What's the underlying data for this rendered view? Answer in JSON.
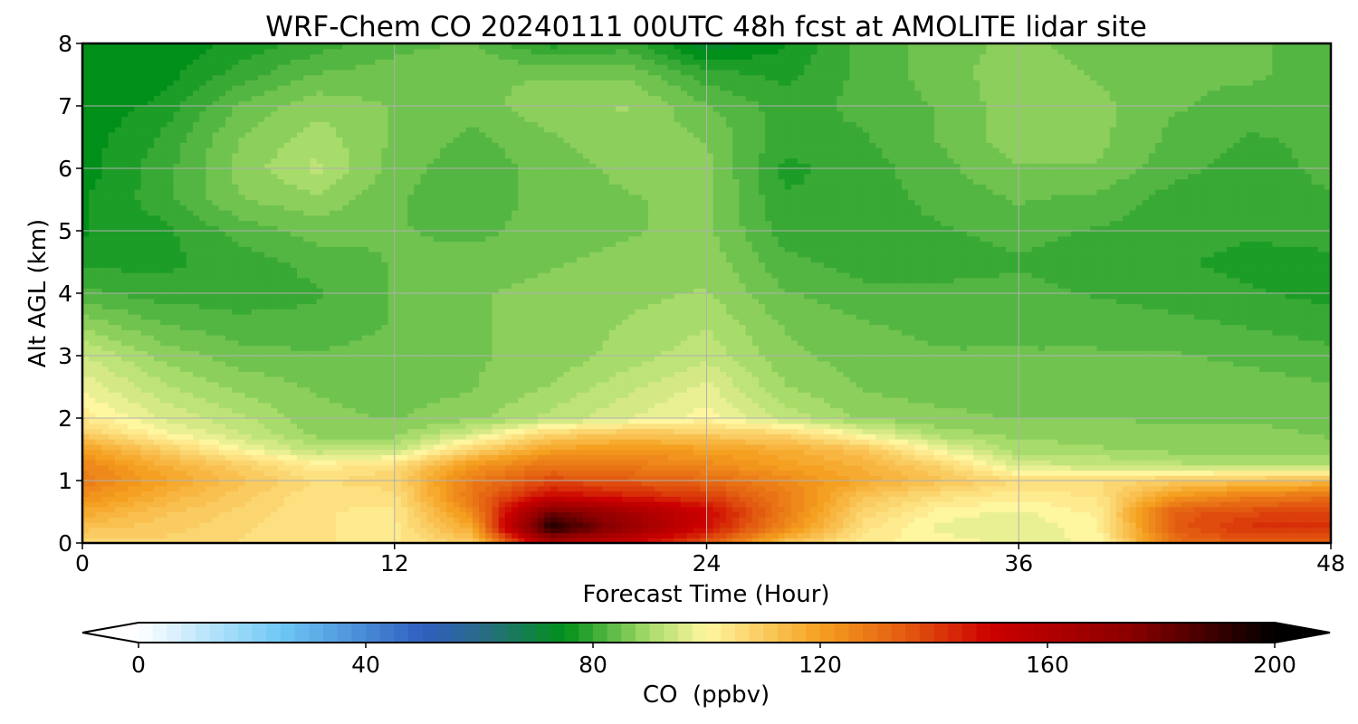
{
  "chart_data": {
    "type": "heatmap",
    "title": "WRF-Chem CO  20240111 00UTC 48h fcst at AMOLITE lidar site",
    "xlabel": "Forecast Time (Hour)",
    "ylabel": "Alt AGL (km)",
    "xlim": [
      0,
      48
    ],
    "ylim": [
      0,
      8
    ],
    "xticks": [
      "0",
      "12",
      "24",
      "36",
      "48"
    ],
    "yticks": [
      "0",
      "1",
      "2",
      "3",
      "4",
      "5",
      "6",
      "7",
      "8"
    ],
    "grid": true,
    "colorbar": {
      "label": "CO  (ppbv)",
      "range": [
        0,
        200
      ],
      "ticks": [
        "0",
        "40",
        "80",
        "120",
        "160",
        "200"
      ],
      "extend": "both",
      "stops": [
        {
          "v": 0,
          "c": "#ffffff"
        },
        {
          "v": 25,
          "c": "#6ec8f5"
        },
        {
          "v": 50,
          "c": "#2f5fc0"
        },
        {
          "v": 60,
          "c": "#2a6a8a"
        },
        {
          "v": 75,
          "c": "#00901a"
        },
        {
          "v": 90,
          "c": "#a8dc6a"
        },
        {
          "v": 100,
          "c": "#fff6a0"
        },
        {
          "v": 120,
          "c": "#f5a020"
        },
        {
          "v": 135,
          "c": "#e35b10"
        },
        {
          "v": 150,
          "c": "#cc0000"
        },
        {
          "v": 175,
          "c": "#8a0000"
        },
        {
          "v": 200,
          "c": "#000000"
        }
      ]
    },
    "x": [
      0,
      3,
      6,
      9,
      12,
      15,
      18,
      21,
      24,
      27,
      30,
      33,
      36,
      39,
      42,
      45,
      48
    ],
    "y": [
      0,
      0.25,
      0.5,
      0.75,
      1,
      1.25,
      1.5,
      1.75,
      2,
      2.5,
      3,
      3.5,
      4,
      4.5,
      5,
      5.5,
      6,
      6.5,
      7,
      7.5,
      8
    ],
    "z": [
      [
        108,
        108,
        106,
        104,
        103,
        110,
        160,
        150,
        135,
        112,
        102,
        100,
        98,
        99,
        130,
        135,
        134
      ],
      [
        112,
        110,
        107,
        104,
        103,
        118,
        195,
        170,
        148,
        125,
        105,
        98,
        97,
        100,
        135,
        142,
        142
      ],
      [
        118,
        112,
        108,
        104,
        103,
        125,
        180,
        165,
        150,
        128,
        108,
        100,
        98,
        102,
        135,
        138,
        140
      ],
      [
        124,
        116,
        110,
        104,
        105,
        130,
        150,
        145,
        140,
        128,
        112,
        105,
        102,
        104,
        122,
        128,
        130
      ],
      [
        128,
        120,
        112,
        106,
        108,
        128,
        138,
        135,
        132,
        125,
        118,
        112,
        106,
        106,
        110,
        112,
        114
      ],
      [
        126,
        117,
        110,
        102,
        106,
        122,
        130,
        128,
        125,
        120,
        116,
        108,
        95,
        94,
        92,
        91,
        91
      ],
      [
        120,
        110,
        100,
        92,
        92,
        108,
        120,
        122,
        120,
        117,
        112,
        98,
        90,
        89,
        88,
        88,
        87
      ],
      [
        110,
        100,
        94,
        88,
        88,
        95,
        108,
        112,
        110,
        108,
        98,
        90,
        88,
        88,
        87,
        87,
        86
      ],
      [
        103,
        96,
        92,
        87,
        86,
        88,
        92,
        96,
        100,
        93,
        88,
        87,
        86,
        86,
        86,
        86,
        85
      ],
      [
        98,
        92,
        88,
        86,
        85,
        86,
        89,
        93,
        97,
        89,
        86,
        85,
        85,
        85,
        86,
        85,
        84
      ],
      [
        94,
        88,
        85,
        84,
        85,
        86,
        87,
        90,
        93,
        87,
        85,
        84,
        84,
        84,
        84,
        83,
        82
      ],
      [
        88,
        84,
        82,
        82,
        84,
        86,
        87,
        89,
        91,
        86,
        84,
        83,
        83,
        83,
        82,
        81,
        80
      ],
      [
        82,
        80,
        80,
        81,
        84,
        86,
        87,
        88,
        89,
        84,
        82,
        82,
        82,
        81,
        80,
        79,
        78
      ],
      [
        78,
        78,
        80,
        82,
        84,
        85,
        86,
        87,
        88,
        82,
        80,
        80,
        81,
        80,
        79,
        78,
        78
      ],
      [
        76,
        78,
        82,
        85,
        84,
        83,
        85,
        86,
        87,
        80,
        80,
        81,
        82,
        81,
        80,
        79,
        80
      ],
      [
        76,
        80,
        86,
        88,
        84,
        82,
        85,
        86,
        87,
        79,
        80,
        82,
        84,
        83,
        80,
        80,
        81
      ],
      [
        75,
        80,
        87,
        92,
        85,
        82,
        85,
        87,
        87,
        78,
        80,
        83,
        86,
        86,
        82,
        80,
        82
      ],
      [
        75,
        79,
        86,
        90,
        86,
        83,
        86,
        88,
        86,
        80,
        81,
        84,
        88,
        87,
        83,
        81,
        82
      ],
      [
        74,
        77,
        84,
        88,
        86,
        85,
        88,
        89,
        84,
        80,
        82,
        84,
        88,
        87,
        84,
        83,
        83
      ],
      [
        74,
        75,
        80,
        84,
        85,
        86,
        86,
        86,
        80,
        78,
        82,
        85,
        88,
        86,
        84,
        84,
        83
      ],
      [
        74,
        74,
        77,
        80,
        83,
        84,
        78,
        80,
        72,
        76,
        82,
        85,
        87,
        85,
        84,
        84,
        83
      ]
    ]
  }
}
